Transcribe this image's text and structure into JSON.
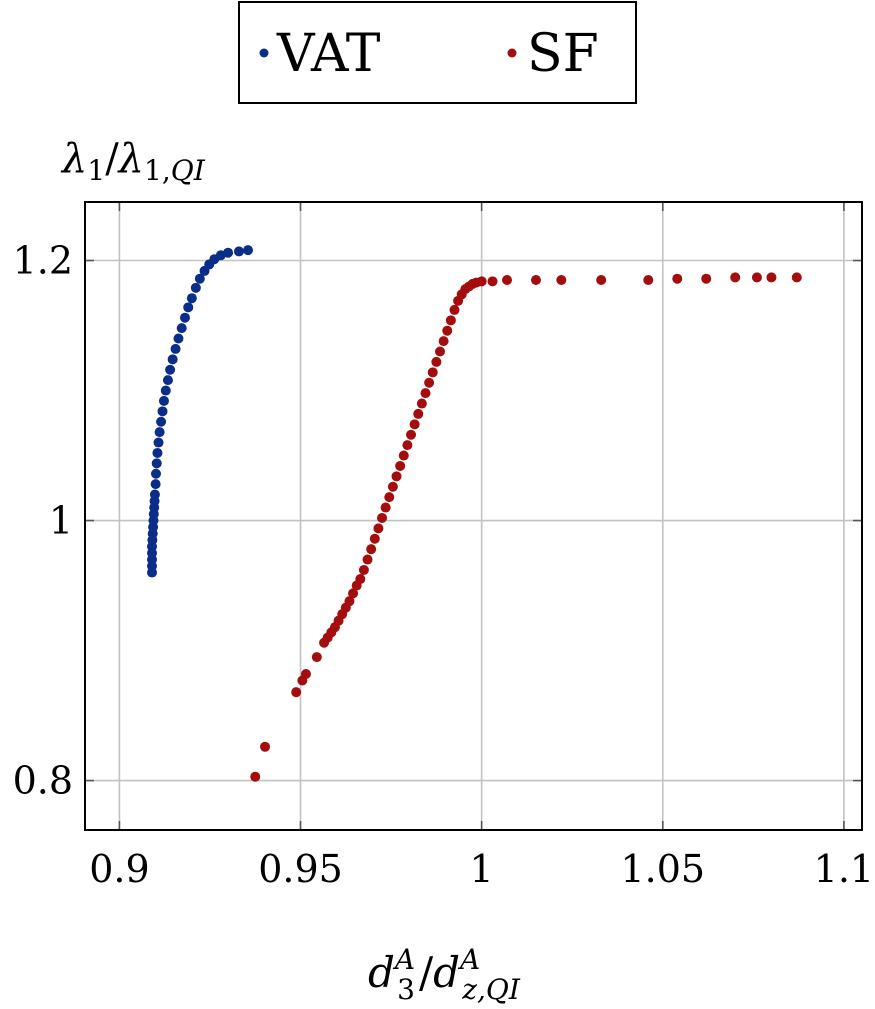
{
  "chart_data": {
    "type": "scatter",
    "xlabel": "d_3^A / d_{z,QI}^A",
    "ylabel": "λ_1 / λ_{1,QI}",
    "xlim": [
      0.8905,
      1.105
    ],
    "ylim": [
      0.762,
      1.245
    ],
    "xticks": [
      0.9,
      0.95,
      1.0,
      1.05,
      1.1
    ],
    "xtick_labels": [
      "0.9",
      "0.95",
      "1",
      "1.05",
      "1.1"
    ],
    "yticks": [
      0.8,
      1.0,
      1.2
    ],
    "ytick_labels": [
      "0.8",
      "1",
      "1.2"
    ],
    "grid": true,
    "legend_position": "top-center",
    "series": [
      {
        "name": "VAT",
        "color": "#0b2d8a",
        "points": [
          [
            0.909,
            0.96
          ],
          [
            0.909,
            0.965
          ],
          [
            0.909,
            0.97
          ],
          [
            0.909,
            0.975
          ],
          [
            0.909,
            0.98
          ],
          [
            0.9091,
            0.985
          ],
          [
            0.9092,
            0.99
          ],
          [
            0.9093,
            0.995
          ],
          [
            0.9094,
            1.0
          ],
          [
            0.9095,
            1.005
          ],
          [
            0.9096,
            1.01
          ],
          [
            0.9097,
            1.015
          ],
          [
            0.9098,
            1.02
          ],
          [
            0.91,
            1.028
          ],
          [
            0.9101,
            1.036
          ],
          [
            0.9103,
            1.044
          ],
          [
            0.9105,
            1.052
          ],
          [
            0.9108,
            1.06
          ],
          [
            0.9111,
            1.068
          ],
          [
            0.9115,
            1.076
          ],
          [
            0.9119,
            1.084
          ],
          [
            0.9123,
            1.092
          ],
          [
            0.9128,
            1.1
          ],
          [
            0.9134,
            1.108
          ],
          [
            0.914,
            1.116
          ],
          [
            0.9147,
            1.124
          ],
          [
            0.9155,
            1.132
          ],
          [
            0.9163,
            1.14
          ],
          [
            0.9172,
            1.148
          ],
          [
            0.9181,
            1.156
          ],
          [
            0.919,
            1.164
          ],
          [
            0.92,
            1.171
          ],
          [
            0.9211,
            1.179
          ],
          [
            0.9222,
            1.186
          ],
          [
            0.9235,
            1.192
          ],
          [
            0.9248,
            1.197
          ],
          [
            0.9262,
            1.201
          ],
          [
            0.928,
            1.204
          ],
          [
            0.93,
            1.206
          ],
          [
            0.933,
            1.207
          ],
          [
            0.9355,
            1.208
          ]
        ]
      },
      {
        "name": "SF",
        "color": "#a30d0d",
        "points": [
          [
            0.9375,
            0.803
          ],
          [
            0.9402,
            0.826
          ],
          [
            0.9488,
            0.868
          ],
          [
            0.9505,
            0.877
          ],
          [
            0.9515,
            0.882
          ],
          [
            0.9545,
            0.895
          ],
          [
            0.9565,
            0.906
          ],
          [
            0.9575,
            0.91
          ],
          [
            0.9585,
            0.914
          ],
          [
            0.9595,
            0.918
          ],
          [
            0.9605,
            0.923
          ],
          [
            0.9615,
            0.928
          ],
          [
            0.9625,
            0.933
          ],
          [
            0.9635,
            0.938
          ],
          [
            0.9645,
            0.944
          ],
          [
            0.9655,
            0.95
          ],
          [
            0.9665,
            0.955
          ],
          [
            0.9675,
            0.962
          ],
          [
            0.9685,
            0.97
          ],
          [
            0.9695,
            0.978
          ],
          [
            0.9705,
            0.986
          ],
          [
            0.9715,
            0.994
          ],
          [
            0.9725,
            1.002
          ],
          [
            0.9735,
            1.01
          ],
          [
            0.9745,
            1.018
          ],
          [
            0.9755,
            1.026
          ],
          [
            0.9765,
            1.034
          ],
          [
            0.9775,
            1.042
          ],
          [
            0.9785,
            1.05
          ],
          [
            0.9795,
            1.058
          ],
          [
            0.9805,
            1.066
          ],
          [
            0.9815,
            1.074
          ],
          [
            0.9825,
            1.082
          ],
          [
            0.9835,
            1.09
          ],
          [
            0.9845,
            1.098
          ],
          [
            0.9855,
            1.106
          ],
          [
            0.9865,
            1.114
          ],
          [
            0.9875,
            1.122
          ],
          [
            0.9885,
            1.13
          ],
          [
            0.9895,
            1.138
          ],
          [
            0.9905,
            1.146
          ],
          [
            0.9915,
            1.154
          ],
          [
            0.9925,
            1.162
          ],
          [
            0.9935,
            1.169
          ],
          [
            0.9945,
            1.174
          ],
          [
            0.9955,
            1.178
          ],
          [
            0.9965,
            1.18
          ],
          [
            0.9975,
            1.182
          ],
          [
            0.9985,
            1.183
          ],
          [
            1.0,
            1.184
          ],
          [
            1.003,
            1.184
          ],
          [
            1.007,
            1.185
          ],
          [
            1.015,
            1.185
          ],
          [
            1.022,
            1.185
          ],
          [
            1.033,
            1.185
          ],
          [
            1.046,
            1.185
          ],
          [
            1.054,
            1.186
          ],
          [
            1.062,
            1.186
          ],
          [
            1.07,
            1.187
          ],
          [
            1.076,
            1.187
          ],
          [
            1.08,
            1.187
          ],
          [
            1.087,
            1.187
          ]
        ]
      }
    ]
  }
}
